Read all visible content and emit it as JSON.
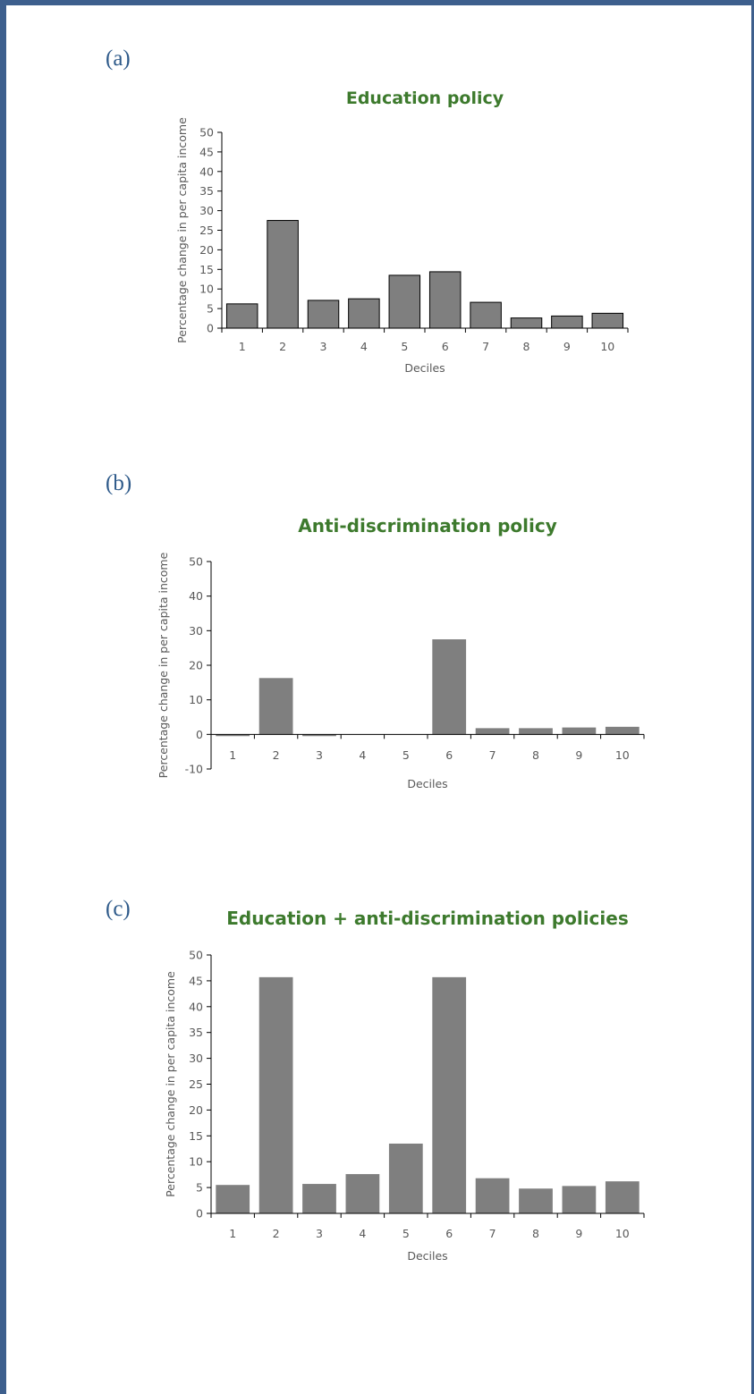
{
  "panels": [
    {
      "label": "(a)"
    },
    {
      "label": "(b)"
    },
    {
      "label": "(c)"
    }
  ],
  "chart_data": [
    {
      "type": "bar",
      "title": "Education policy",
      "xlabel": "Deciles",
      "ylabel": "Percentage change in per capita income",
      "categories": [
        "1",
        "2",
        "3",
        "4",
        "5",
        "6",
        "7",
        "8",
        "9",
        "10"
      ],
      "values": [
        6.2,
        27.5,
        7.1,
        7.5,
        13.5,
        14.4,
        6.6,
        2.6,
        3.1,
        3.8
      ],
      "ylim": [
        0,
        50
      ],
      "yticks": [
        0,
        5,
        10,
        15,
        20,
        25,
        30,
        35,
        40,
        45,
        50
      ],
      "bar_color": "#7f7f7f",
      "bar_outline": "#000000",
      "title_color": "#3d7a2d",
      "grid": false
    },
    {
      "type": "bar",
      "title": "Anti-discrimination policy",
      "xlabel": "Deciles",
      "ylabel": "Percentage change in per capita income",
      "categories": [
        "1",
        "2",
        "3",
        "4",
        "5",
        "6",
        "7",
        "8",
        "9",
        "10"
      ],
      "values": [
        -0.5,
        16.3,
        -0.5,
        0,
        0,
        27.5,
        1.8,
        1.8,
        2.0,
        2.2
      ],
      "ylim": [
        -10,
        50
      ],
      "yticks": [
        -10,
        0,
        10,
        20,
        30,
        40,
        50
      ],
      "bar_color": "#7f7f7f",
      "title_color": "#3d7a2d",
      "grid": false
    },
    {
      "type": "bar",
      "title": "Education + anti-discrimination policies",
      "xlabel": "Deciles",
      "ylabel": "Percentage change in per capita income",
      "categories": [
        "1",
        "2",
        "3",
        "4",
        "5",
        "6",
        "7",
        "8",
        "9",
        "10"
      ],
      "values": [
        5.5,
        45.7,
        5.7,
        7.6,
        13.5,
        45.7,
        6.8,
        4.8,
        5.3,
        6.2
      ],
      "ylim": [
        0,
        50
      ],
      "yticks": [
        0,
        5,
        10,
        15,
        20,
        25,
        30,
        35,
        40,
        45,
        50
      ],
      "bar_color": "#7f7f7f",
      "title_color": "#3d7a2d",
      "grid": false
    }
  ]
}
